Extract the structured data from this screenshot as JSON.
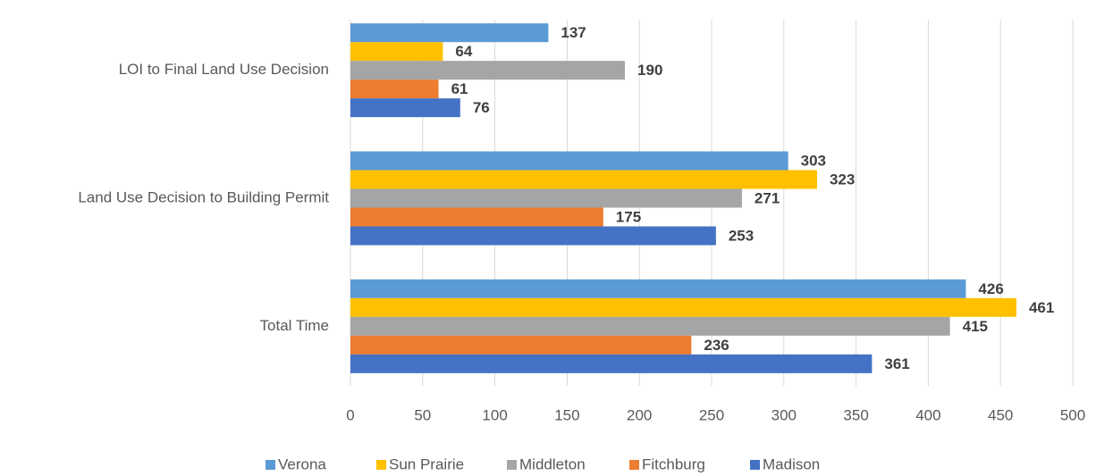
{
  "chart_data": {
    "type": "bar",
    "orientation": "horizontal",
    "categories": [
      "LOI to Final Land Use Decision",
      "Land Use Decision to Building Permit",
      "Total Time"
    ],
    "series": [
      {
        "name": "Verona",
        "color": "#5b9bd5",
        "values": [
          137,
          303,
          426
        ]
      },
      {
        "name": "Sun Prairie",
        "color": "#ffc000",
        "values": [
          64,
          323,
          461
        ]
      },
      {
        "name": "Middleton",
        "color": "#a5a5a5",
        "values": [
          190,
          271,
          415
        ]
      },
      {
        "name": "Fitchburg",
        "color": "#ed7d31",
        "values": [
          61,
          175,
          236
        ]
      },
      {
        "name": "Madison",
        "color": "#4472c4",
        "values": [
          76,
          253,
          361
        ]
      }
    ],
    "xlim": [
      0,
      500
    ],
    "xticks": [
      0,
      50,
      100,
      150,
      200,
      250,
      300,
      350,
      400,
      450,
      500
    ],
    "grid": true,
    "legend": "bottom"
  }
}
